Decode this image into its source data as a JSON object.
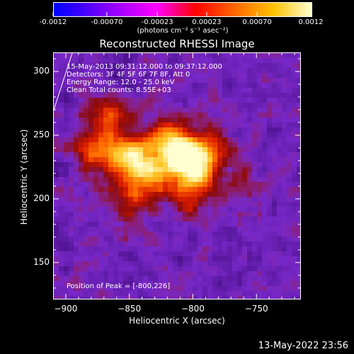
{
  "colorbar": {
    "tick_labels": [
      "-0.0012",
      "-0.00070",
      "-0.00023",
      "0.00023",
      "0.00070",
      "0.0012"
    ],
    "units": "(photons cm⁻² s⁻¹ asec⁻²)"
  },
  "chart_data": {
    "type": "heatmap",
    "title": "Reconstructed RHESSI Image",
    "xlabel": "Heliocentric X (arcsec)",
    "ylabel": "Heliocentric Y (arcsec)",
    "xlim": [
      -910,
      -715
    ],
    "ylim": [
      121,
      315
    ],
    "xticks": [
      -900,
      -850,
      -800,
      -750
    ],
    "xtick_labels": [
      "−900",
      "−850",
      "−800",
      "−750"
    ],
    "yticks": [
      150,
      200,
      250,
      300
    ],
    "ytick_labels": [
      "150",
      "200",
      "250",
      "300"
    ],
    "colorbar_range": [
      -0.0012,
      0.0012
    ],
    "peak_position": [
      -800,
      226
    ],
    "sources": [
      {
        "x": -798,
        "y": 226,
        "intensity": 0.0012
      },
      {
        "x": -812,
        "y": 238,
        "intensity": 0.0009
      },
      {
        "x": -845,
        "y": 232,
        "intensity": 0.00075
      },
      {
        "x": -833,
        "y": 218,
        "intensity": 0.0007
      },
      {
        "x": -860,
        "y": 238,
        "intensity": 0.0006
      },
      {
        "x": -820,
        "y": 248,
        "intensity": 0.00055
      },
      {
        "x": -868,
        "y": 268,
        "intensity": 0.0006
      },
      {
        "x": -880,
        "y": 240,
        "intensity": 0.0005
      },
      {
        "x": -785,
        "y": 245,
        "intensity": 0.00045
      },
      {
        "x": -805,
        "y": 205,
        "intensity": 0.0005
      },
      {
        "x": -850,
        "y": 200,
        "intensity": 0.00035
      },
      {
        "x": -760,
        "y": 215,
        "intensity": 0.0003
      }
    ],
    "annotations": [
      "15-May-2013 09:31:12.000 to 09:37:12.000",
      "Detectors: 3F 4F 5F 6F 7F 8F, Att 0",
      "Energy Range: 12.0 - 25.0 keV",
      "Clean    Total counts: 8.55E+03",
      "Position of Peak = [-800,226]"
    ]
  },
  "footer_timestamp": "13-May-2022 23:56"
}
